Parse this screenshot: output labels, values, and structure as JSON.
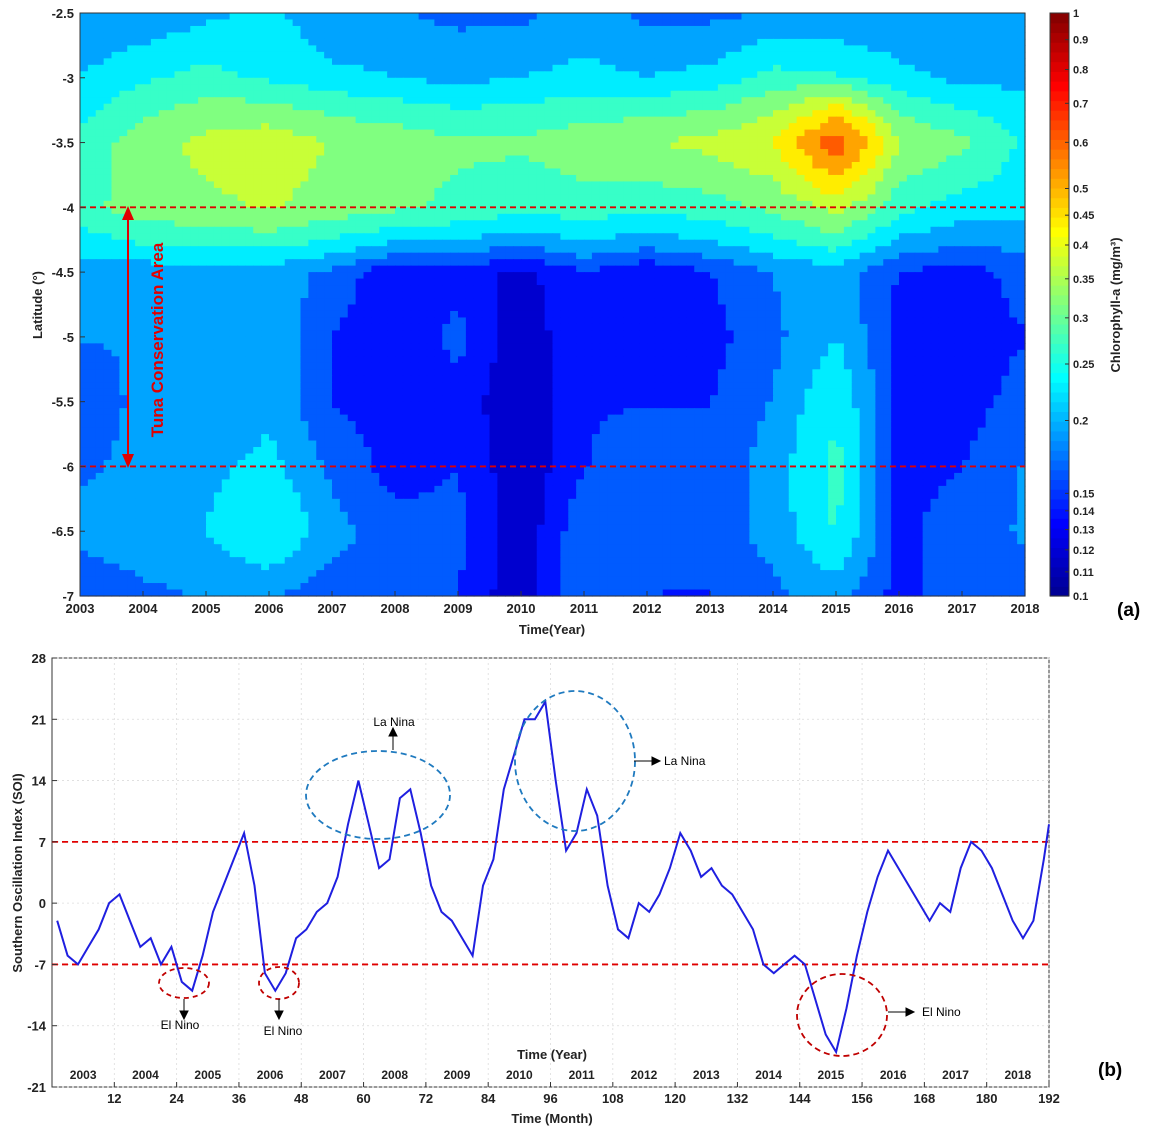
{
  "chart_data": [
    {
      "type": "heatmap",
      "panel_label": "(a)",
      "xlabel": "Time(Year)",
      "ylabel": "Latitude (°)",
      "colorbar_label": "Chlorophyll-a (mg/m³)",
      "xlim": [
        2003,
        2018
      ],
      "ylim": [
        -7,
        -2.5
      ],
      "x_ticks": [
        "2003",
        "2004",
        "2005",
        "2006",
        "2007",
        "2008",
        "2009",
        "2010",
        "2011",
        "2012",
        "2013",
        "2014",
        "2015",
        "2016",
        "2017",
        "2018"
      ],
      "y_ticks": [
        "-2.5",
        "-3",
        "-3.5",
        "-4",
        "-4.5",
        "-5",
        "-5.5",
        "-6",
        "-6.5",
        "-7"
      ],
      "colorbar_ticks": [
        "1",
        "0.9",
        "0.8",
        "0.7",
        "0.6",
        "0.5",
        "0.45",
        "0.4",
        "0.35",
        "0.3",
        "0.25",
        "0.2",
        "0.15",
        "0.14",
        "0.13",
        "0.12",
        "0.11",
        "0.1"
      ],
      "colorbar_range": [
        0.1,
        1
      ],
      "colorbar_scale": "log",
      "reference_lines": [
        -4,
        -6
      ],
      "annotation": "Tuna Conservation Area",
      "x": [
        2003,
        2004,
        2005,
        2006,
        2007,
        2008,
        2009,
        2010,
        2011,
        2012,
        2013,
        2014,
        2015,
        2016,
        2017,
        2018
      ],
      "y": [
        -2.5,
        -3,
        -3.5,
        -4,
        -4.5,
        -5,
        -5.5,
        -6,
        -6.5,
        -7
      ],
      "z": [
        [
          0.18,
          0.18,
          0.2,
          0.22,
          0.18,
          0.18,
          0.17,
          0.17,
          0.19,
          0.17,
          0.17,
          0.18,
          0.18,
          0.18,
          0.18,
          0.18
        ],
        [
          0.21,
          0.24,
          0.26,
          0.24,
          0.22,
          0.21,
          0.2,
          0.21,
          0.22,
          0.21,
          0.22,
          0.26,
          0.25,
          0.22,
          0.2,
          0.2
        ],
        [
          0.26,
          0.32,
          0.36,
          0.38,
          0.34,
          0.32,
          0.3,
          0.3,
          0.32,
          0.34,
          0.36,
          0.4,
          0.62,
          0.34,
          0.3,
          0.24
        ],
        [
          0.27,
          0.32,
          0.33,
          0.35,
          0.32,
          0.3,
          0.28,
          0.26,
          0.27,
          0.26,
          0.27,
          0.3,
          0.36,
          0.26,
          0.23,
          0.22
        ],
        [
          0.19,
          0.19,
          0.19,
          0.19,
          0.17,
          0.13,
          0.14,
          0.12,
          0.15,
          0.13,
          0.15,
          0.18,
          0.19,
          0.15,
          0.14,
          0.16
        ],
        [
          0.18,
          0.18,
          0.18,
          0.21,
          0.15,
          0.13,
          0.16,
          0.11,
          0.15,
          0.13,
          0.14,
          0.17,
          0.21,
          0.14,
          0.14,
          0.15
        ],
        [
          0.15,
          0.19,
          0.18,
          0.2,
          0.15,
          0.14,
          0.14,
          0.11,
          0.15,
          0.15,
          0.15,
          0.18,
          0.24,
          0.14,
          0.14,
          0.16
        ],
        [
          0.17,
          0.19,
          0.2,
          0.22,
          0.17,
          0.14,
          0.15,
          0.11,
          0.15,
          0.16,
          0.16,
          0.19,
          0.26,
          0.14,
          0.15,
          0.18
        ],
        [
          0.19,
          0.2,
          0.21,
          0.25,
          0.19,
          0.16,
          0.16,
          0.11,
          0.17,
          0.17,
          0.16,
          0.19,
          0.25,
          0.14,
          0.17,
          0.18
        ],
        [
          0.15,
          0.17,
          0.18,
          0.18,
          0.16,
          0.17,
          0.15,
          0.11,
          0.17,
          0.15,
          0.15,
          0.17,
          0.19,
          0.14,
          0.17,
          0.17
        ]
      ]
    },
    {
      "type": "line",
      "panel_label": "(b)",
      "xlabel": "Time (Month)",
      "ylabel": "Southern Oscillation Index (SOI)",
      "inner_label": "Time (Year)",
      "xlim": [
        1,
        192
      ],
      "ylim": [
        -21,
        28
      ],
      "x_ticks": [
        "12",
        "24",
        "36",
        "48",
        "60",
        "72",
        "84",
        "96",
        "108",
        "120",
        "132",
        "144",
        "156",
        "168",
        "180",
        "192"
      ],
      "y_ticks": [
        "28",
        "21",
        "14",
        "7",
        "0",
        "-7",
        "-14",
        "-21"
      ],
      "year_labels": [
        "2003",
        "2004",
        "2005",
        "2006",
        "2007",
        "2008",
        "2009",
        "2010",
        "2011",
        "2012",
        "2013",
        "2014",
        "2015",
        "2016",
        "2017",
        "2018"
      ],
      "reference_lines": [
        7,
        -7
      ],
      "annotations": [
        {
          "text": "La Nina",
          "x": 66,
          "y": 13
        },
        {
          "text": "La Nina",
          "x": 103,
          "y": 16
        },
        {
          "text": "El Nino",
          "x": 28,
          "y": -9
        },
        {
          "text": "El Nino",
          "x": 44,
          "y": -9
        },
        {
          "text": "El Nino",
          "x": 152,
          "y": -14
        }
      ],
      "series": [
        {
          "color": "#1f1fe0",
          "x": [
            1,
            3,
            5,
            7,
            9,
            11,
            13,
            15,
            17,
            19,
            21,
            23,
            25,
            27,
            29,
            31,
            33,
            35,
            37,
            39,
            41,
            43,
            45,
            47,
            49,
            51,
            53,
            55,
            57,
            59,
            61,
            63,
            65,
            67,
            69,
            71,
            73,
            75,
            77,
            79,
            81,
            83,
            85,
            87,
            89,
            91,
            93,
            95,
            97,
            99,
            101,
            103,
            105,
            107,
            109,
            111,
            113,
            115,
            117,
            119,
            121,
            123,
            125,
            127,
            129,
            131,
            133,
            135,
            137,
            139,
            141,
            143,
            145,
            147,
            149,
            151,
            153,
            155,
            157,
            159,
            161,
            163,
            165,
            167,
            169,
            171,
            173,
            175,
            177,
            179,
            181,
            183,
            185,
            187,
            189,
            191,
            192
          ],
          "values": [
            -2,
            -6,
            -7,
            -5,
            -3,
            0,
            1,
            -2,
            -5,
            -4,
            -7,
            -5,
            -9,
            -10,
            -6,
            -1,
            2,
            5,
            8,
            2,
            -8,
            -10,
            -8,
            -4,
            -3,
            -1,
            0,
            3,
            9,
            14,
            9,
            4,
            5,
            12,
            13,
            8,
            2,
            -1,
            -2,
            -4,
            -6,
            2,
            5,
            13,
            17,
            21,
            21,
            23,
            14,
            6,
            8,
            13,
            10,
            2,
            -3,
            -4,
            0,
            -1,
            1,
            4,
            8,
            6,
            3,
            4,
            2,
            1,
            -1,
            -3,
            -7,
            -8,
            -7,
            -6,
            -7,
            -11,
            -15,
            -17,
            -12,
            -6,
            -1,
            3,
            6,
            4,
            2,
            0,
            -2,
            0,
            -1,
            4,
            7,
            6,
            4,
            1,
            -2,
            -4,
            -2,
            5,
            9
          ]
        }
      ]
    }
  ]
}
